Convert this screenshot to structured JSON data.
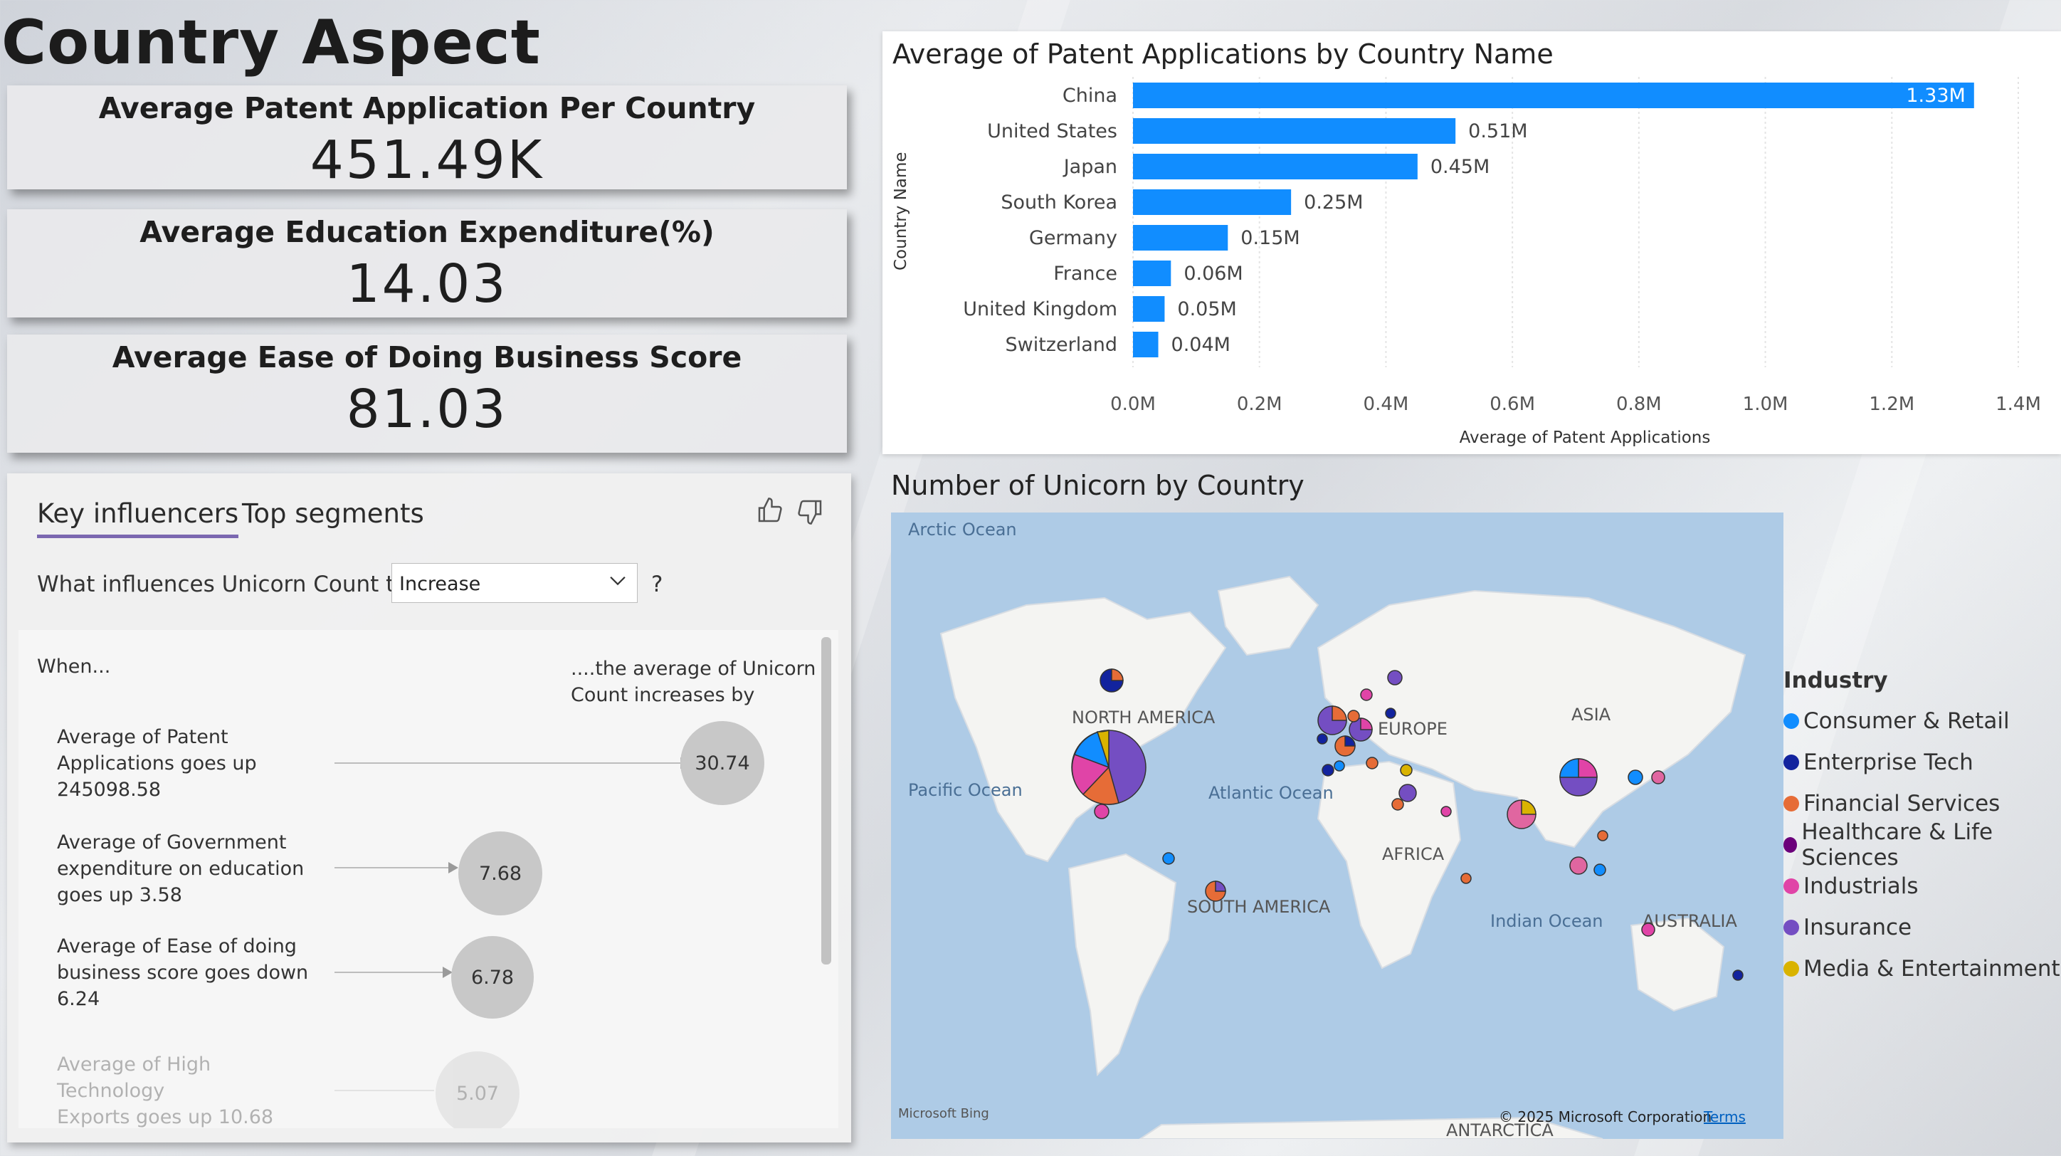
{
  "page_title": "Country Aspect",
  "kpis": [
    {
      "label": "Average Patent Application Per Country",
      "value": "451.49K"
    },
    {
      "label": "Average Education Expenditure(%)",
      "value": "14.03"
    },
    {
      "label": "Average Ease of Doing Business Score",
      "value": "81.03"
    }
  ],
  "key_influencers": {
    "tabs": [
      "Key influencers",
      "Top segments"
    ],
    "question_prefix": "What influences Unicorn Count to",
    "question_value": "Increase",
    "question_suffix": "?",
    "when_header": "When...",
    "then_header_line1": "....the average of Unicorn",
    "then_header_line2": "Count increases by",
    "rows": [
      {
        "text_l1": "Average of Patent",
        "text_l2": "Applications goes up",
        "text_l3": "245098.58",
        "value": "30.74"
      },
      {
        "text_l1": "Average of Government",
        "text_l2": "expenditure on education",
        "text_l3": "goes up 3.58",
        "value": "7.68"
      },
      {
        "text_l1": "Average of Ease of doing",
        "text_l2": "business score goes down",
        "text_l3": "6.24",
        "value": "6.78"
      },
      {
        "text_l1": "Average of High Technology",
        "text_l2": "Exports goes up 10.68",
        "text_l3": "",
        "value": "5.07"
      }
    ]
  },
  "chart_data": {
    "type": "bar",
    "orientation": "horizontal",
    "title": "Average of Patent Applications by Country Name",
    "xlabel": "Average of Patent Applications",
    "ylabel": "Country Name",
    "categories": [
      "China",
      "United States",
      "Japan",
      "South Korea",
      "Germany",
      "France",
      "United Kingdom",
      "Switzerland"
    ],
    "values": [
      1.33,
      0.51,
      0.45,
      0.25,
      0.15,
      0.06,
      0.05,
      0.04
    ],
    "data_labels": [
      "1.33M",
      "0.51M",
      "0.45M",
      "0.25M",
      "0.15M",
      "0.06M",
      "0.05M",
      "0.04M"
    ],
    "x_ticks": [
      "0.0M",
      "0.2M",
      "0.4M",
      "0.6M",
      "0.8M",
      "1.0M",
      "1.2M",
      "1.4M"
    ],
    "xlim": [
      0,
      1.4
    ],
    "bar_color": "#118dff",
    "grid": true
  },
  "map": {
    "title": "Number of Unicorn by Country",
    "labels": {
      "arctic": "Arctic Ocean",
      "pacific": "Pacific Ocean",
      "atlantic": "Atlantic Ocean",
      "indian": "Indian Ocean",
      "north_america": "NORTH AMERICA",
      "south_america": "SOUTH AMERICA",
      "europe": "EUROPE",
      "africa": "AFRICA",
      "asia": "ASIA",
      "australia": "AUSTRALIA",
      "antarctica": "ANTARCTICA"
    },
    "copyright": "© 2025 Microsoft Corporation",
    "terms": "Terms",
    "bing": "Microsoft Bing"
  },
  "legend": {
    "title": "Industry",
    "items": [
      {
        "name": "Consumer & Retail",
        "color": "#118dff"
      },
      {
        "name": "Enterprise Tech",
        "color": "#12239e"
      },
      {
        "name": "Financial Services",
        "color": "#e66c37"
      },
      {
        "name": "Healthcare & Life Sciences",
        "color": "#6b007b"
      },
      {
        "name": "Industrials",
        "color": "#e044a7"
      },
      {
        "name": "Insurance",
        "color": "#744ec2"
      },
      {
        "name": "Media & Entertainment",
        "color": "#d9b300"
      }
    ]
  }
}
